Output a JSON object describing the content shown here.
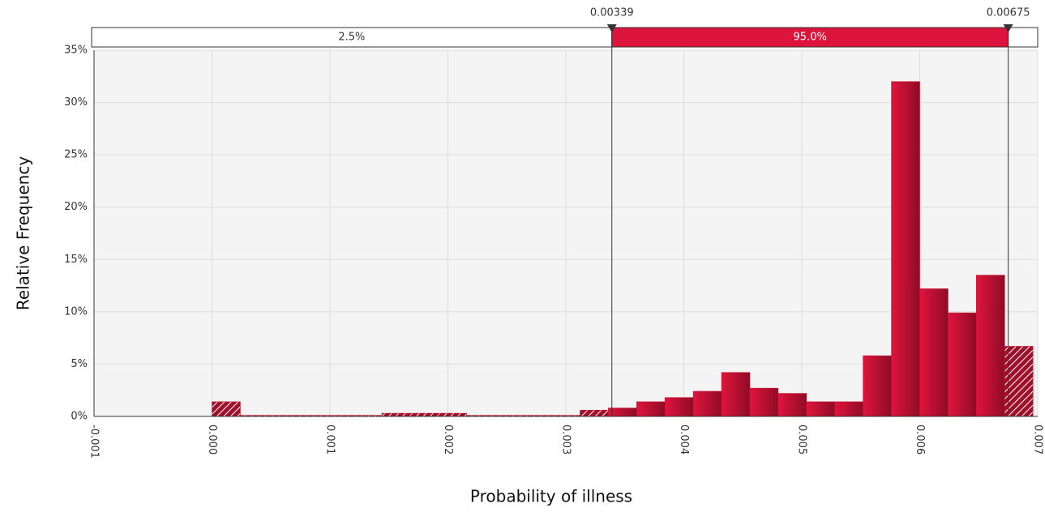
{
  "chart_data": {
    "type": "histogram",
    "x_label": "Probability of illness",
    "y_label": "Relative Frequency",
    "color": "#c8102e",
    "bins": [
      0,
      0.00024,
      0.00048,
      0.00072,
      0.00096,
      0.0012,
      0.00144,
      0.00168,
      0.00192,
      0.00216,
      0.0024,
      0.00264,
      0.00288,
      0.00312,
      0.00336,
      0.0036,
      0.00384,
      0.00408,
      0.00432,
      0.00456,
      0.0048,
      0.00504,
      0.00528,
      0.00552,
      0.00576,
      0.006,
      0.00624,
      0.00648,
      0.00672,
      0.00696
    ],
    "values": [
      1.4,
      0.1,
      0.1,
      0.1,
      0.1,
      0.1,
      0.3,
      0.3,
      0.3,
      0.1,
      0.1,
      0.1,
      0.1,
      0.6,
      0.8,
      1.4,
      1.8,
      2.4,
      4.2,
      2.7,
      2.2,
      1.4,
      1.4,
      5.8,
      32.0,
      12.2,
      9.9,
      13.5,
      6.7
    ],
    "xlim": [
      -0.001,
      0.007
    ],
    "xticks": [
      -0.001,
      {
        "value": 0,
        "label": "0.000"
      },
      0.001,
      0.002,
      0.003,
      0.004,
      0.005,
      0.006,
      0.007
    ],
    "ylim": [
      0,
      35
    ],
    "yticks": [
      {
        "value": 0,
        "label": "0%"
      },
      {
        "value": 5,
        "label": "5%"
      },
      {
        "value": 10,
        "label": "10%"
      },
      {
        "value": 15,
        "label": "15%"
      },
      {
        "value": 20,
        "label": "20%"
      },
      {
        "value": 25,
        "label": "25%"
      },
      {
        "value": 30,
        "label": "30%"
      },
      {
        "value": 35,
        "label": "35%"
      }
    ],
    "grid": true,
    "delimiters": [
      0.00339,
      0.00675
    ],
    "bands": [
      {
        "value": 2.5,
        "label": "2.5%"
      },
      {
        "value": 95.0,
        "label": "95.0%"
      }
    ]
  }
}
